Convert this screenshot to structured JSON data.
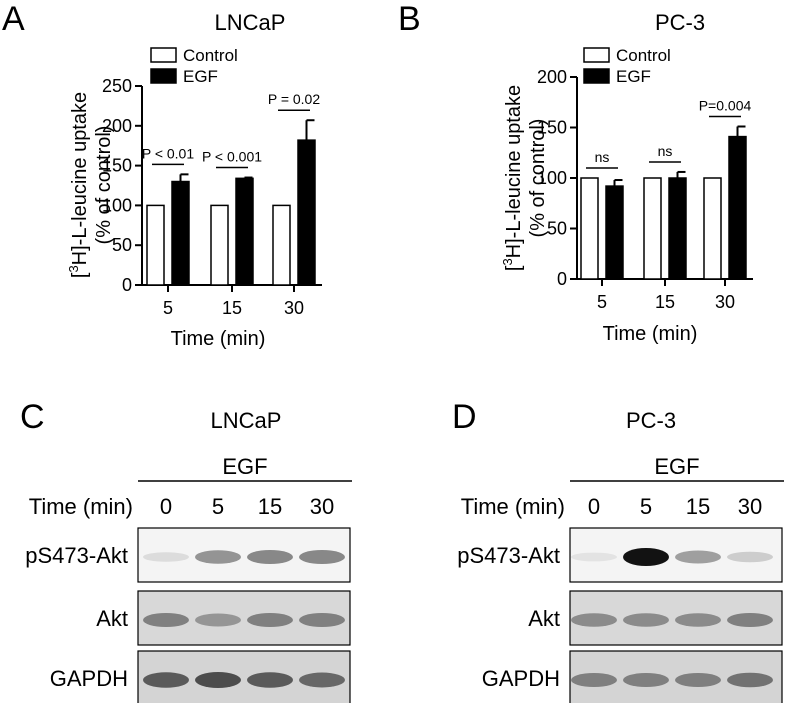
{
  "panels": [
    {
      "letter": "A",
      "title": "LNCaP"
    },
    {
      "letter": "B",
      "title": "PC-3"
    },
    {
      "letter": "C",
      "title": "LNCaP"
    },
    {
      "letter": "D",
      "title": "PC-3"
    }
  ],
  "chart_data": [
    {
      "type": "bar",
      "title": "LNCaP",
      "xlabel": "Time (min)",
      "ylabel_main": "]-L-leucine uptake",
      "ylabel_sup": "3",
      "ylabel_pre": "[",
      "ylabel_mid": "H",
      "ylabel_sub": "(% of control)",
      "categories": [
        "5",
        "15",
        "30"
      ],
      "ylim": [
        0,
        250
      ],
      "yticks": [
        "0",
        "50",
        "100",
        "150",
        "200",
        "250"
      ],
      "series": [
        {
          "name": "Control",
          "values": [
            100,
            100,
            100
          ],
          "errors": [
            0,
            0,
            0
          ],
          "color": "#ffffff"
        },
        {
          "name": "EGF",
          "values": [
            130,
            134,
            182
          ],
          "errors": [
            9,
            1,
            25
          ],
          "color": "#000000"
        }
      ],
      "significance": [
        "P < 0.01",
        "P < 0.001",
        "P = 0.02"
      ],
      "legend_position": "top-left"
    },
    {
      "type": "bar",
      "title": "PC-3",
      "xlabel": "Time (min)",
      "ylabel_main": "]-L-leucine uptake",
      "ylabel_sup": "3",
      "ylabel_pre": "[",
      "ylabel_mid": "H",
      "ylabel_sub": "(% of control)",
      "categories": [
        "5",
        "15",
        "30"
      ],
      "ylim": [
        0,
        200
      ],
      "yticks": [
        "0",
        "50",
        "100",
        "150",
        "200"
      ],
      "series": [
        {
          "name": "Control",
          "values": [
            100,
            100,
            100
          ],
          "errors": [
            0,
            0,
            0
          ],
          "color": "#ffffff"
        },
        {
          "name": "EGF",
          "values": [
            92,
            100,
            141
          ],
          "errors": [
            6,
            6,
            10
          ],
          "color": "#000000"
        }
      ],
      "significance": [
        "ns",
        "ns",
        "P=0.004"
      ],
      "legend_position": "top-left"
    }
  ],
  "blots": [
    {
      "title": "LNCaP",
      "treatment": "EGF",
      "time_label": "Time (min)",
      "times": [
        "0",
        "5",
        "15",
        "30"
      ],
      "rows": [
        {
          "label": "pS473-Akt",
          "intensities": [
            0.15,
            0.55,
            0.6,
            0.6
          ]
        },
        {
          "label": "Akt",
          "intensities": [
            0.6,
            0.5,
            0.6,
            0.6
          ]
        },
        {
          "label": "GAPDH",
          "intensities": [
            0.75,
            0.8,
            0.75,
            0.7
          ]
        }
      ]
    },
    {
      "title": "PC-3",
      "treatment": "EGF",
      "time_label": "Time (min)",
      "times": [
        "0",
        "5",
        "15",
        "30"
      ],
      "rows": [
        {
          "label": "pS473-Akt",
          "intensities": [
            0.08,
            1.0,
            0.5,
            0.25
          ]
        },
        {
          "label": "Akt",
          "intensities": [
            0.55,
            0.55,
            0.55,
            0.6
          ]
        },
        {
          "label": "GAPDH",
          "intensities": [
            0.6,
            0.6,
            0.6,
            0.65
          ]
        }
      ]
    }
  ]
}
